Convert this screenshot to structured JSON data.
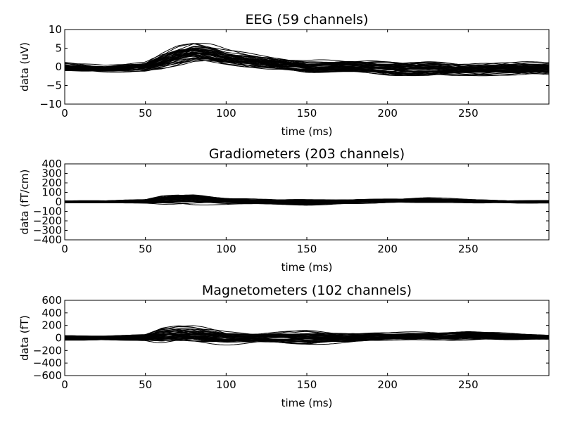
{
  "chart_data": [
    {
      "type": "line",
      "title": "EEG (59 channels)",
      "xlabel": "time (ms)",
      "ylabel": "data (uV)",
      "xlim": [
        0,
        300
      ],
      "ylim": [
        -10,
        10
      ],
      "xticks": [
        0,
        50,
        100,
        150,
        200,
        250
      ],
      "yticks": [
        10,
        5,
        0,
        -5,
        -10
      ],
      "xtick_labels": [
        "0",
        "50",
        "100",
        "150",
        "200",
        "250"
      ],
      "ytick_labels": [
        "10",
        "5",
        "0",
        "−5",
        "−10"
      ],
      "channels": 59,
      "line_color": "#000000",
      "envelope": {
        "x": [
          0,
          25,
          50,
          60,
          70,
          80,
          90,
          100,
          120,
          150,
          175,
          200,
          225,
          250,
          275,
          300
        ],
        "center": [
          0,
          -0.5,
          0,
          1.5,
          3,
          4,
          3.5,
          2.5,
          1.5,
          0,
          0,
          -0.3,
          -0.5,
          -0.8,
          -0.5,
          -0.3
        ],
        "halfwidth": [
          1.5,
          1,
          1.5,
          2.5,
          3,
          3,
          2.8,
          2.5,
          2.2,
          2,
          2,
          2.5,
          2.5,
          2,
          2,
          2
        ]
      }
    },
    {
      "type": "line",
      "title": "Gradiometers (203 channels)",
      "xlabel": "time (ms)",
      "ylabel": "data (fT/cm)",
      "xlim": [
        0,
        300
      ],
      "ylim": [
        -400,
        400
      ],
      "xticks": [
        0,
        50,
        100,
        150,
        200,
        250
      ],
      "yticks": [
        400,
        300,
        200,
        100,
        0,
        -100,
        -200,
        -300,
        -400
      ],
      "xtick_labels": [
        "0",
        "50",
        "100",
        "150",
        "200",
        "250"
      ],
      "ytick_labels": [
        "400",
        "300",
        "200",
        "100",
        "0",
        "−100",
        "−200",
        "−300",
        "−400"
      ],
      "channels": 203,
      "line_color": "#000000",
      "envelope": {
        "x": [
          0,
          25,
          50,
          60,
          70,
          80,
          90,
          100,
          120,
          150,
          175,
          200,
          225,
          250,
          275,
          300
        ],
        "center": [
          0,
          0,
          5,
          20,
          30,
          25,
          15,
          5,
          0,
          -10,
          0,
          10,
          15,
          10,
          0,
          0
        ],
        "halfwidth": [
          15,
          15,
          25,
          50,
          60,
          60,
          50,
          40,
          30,
          40,
          25,
          25,
          30,
          25,
          15,
          15
        ]
      }
    },
    {
      "type": "line",
      "title": "Magnetometers (102 channels)",
      "xlabel": "time (ms)",
      "ylabel": "data (fT)",
      "xlim": [
        0,
        300
      ],
      "ylim": [
        -600,
        600
      ],
      "xticks": [
        0,
        50,
        100,
        150,
        200,
        250
      ],
      "yticks": [
        600,
        400,
        200,
        0,
        -200,
        -400,
        -600
      ],
      "xtick_labels": [
        "0",
        "50",
        "100",
        "150",
        "200",
        "250"
      ],
      "ytick_labels": [
        "600",
        "400",
        "200",
        "0",
        "−200",
        "−400",
        "−600"
      ],
      "channels": 102,
      "line_color": "#000000",
      "envelope": {
        "x": [
          0,
          25,
          50,
          60,
          70,
          80,
          90,
          100,
          120,
          150,
          175,
          200,
          225,
          250,
          275,
          300
        ],
        "center": [
          0,
          0,
          10,
          40,
          50,
          40,
          20,
          0,
          0,
          0,
          0,
          20,
          30,
          40,
          20,
          10
        ],
        "halfwidth": [
          40,
          40,
          60,
          150,
          170,
          170,
          150,
          120,
          90,
          120,
          80,
          70,
          80,
          80,
          60,
          40
        ]
      }
    }
  ]
}
